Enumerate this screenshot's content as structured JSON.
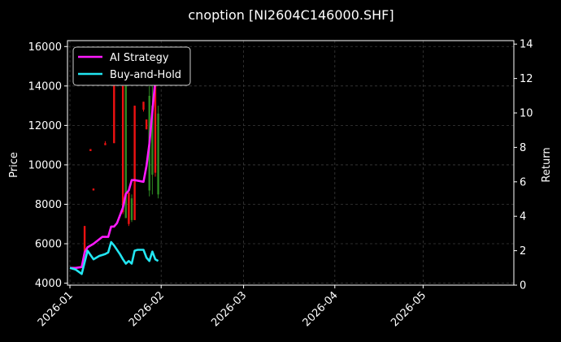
{
  "chart_data": {
    "type": "line",
    "title": "cnoption [NI2604C146000.SHF]",
    "ylabel_left": "Price",
    "ylabel_right": "Return",
    "xlabel": "",
    "x_ticks": [
      "2026-01",
      "2026-02",
      "2026-03",
      "2026-04",
      "2026-05"
    ],
    "x_range": [
      "2026-01-01",
      "2026-05-31"
    ],
    "y_left_ticks": [
      4000,
      6000,
      8000,
      10000,
      12000,
      14000,
      16000
    ],
    "y_left_range": [
      3900,
      16300
    ],
    "y_right_ticks": [
      0,
      2,
      4,
      6,
      8,
      10,
      12,
      14
    ],
    "y_right_range": [
      0,
      14.2
    ],
    "grid": true,
    "legend_position": "top-left",
    "colors": {
      "up": "#2e8b22",
      "down": "#ee1111",
      "ai": "#ff1aff",
      "bh": "#22e6f2"
    },
    "candles": [
      {
        "date": "2026-01-06",
        "open": 6900,
        "high": 6900,
        "low": 5600,
        "close": 5600
      },
      {
        "date": "2026-01-08",
        "open": 10800,
        "high": 10800,
        "low": 10700,
        "close": 10700
      },
      {
        "date": "2026-01-09",
        "open": 8800,
        "high": 8800,
        "low": 8700,
        "close": 8700
      },
      {
        "date": "2026-01-13",
        "open": 11100,
        "high": 11200,
        "low": 11000,
        "close": 11000
      },
      {
        "date": "2026-01-16",
        "open": 15600,
        "high": 15600,
        "low": 11100,
        "close": 11100
      },
      {
        "date": "2026-01-19",
        "open": 14000,
        "high": 14000,
        "low": 7500,
        "close": 7600
      },
      {
        "date": "2026-01-20",
        "open": 7300,
        "high": 15500,
        "low": 7300,
        "close": 14200
      },
      {
        "date": "2026-01-21",
        "open": 8600,
        "high": 8600,
        "low": 6900,
        "close": 7000
      },
      {
        "date": "2026-01-22",
        "open": 7200,
        "high": 8500,
        "low": 7100,
        "close": 8300
      },
      {
        "date": "2026-01-23",
        "open": 13000,
        "high": 13000,
        "low": 7200,
        "close": 7200
      },
      {
        "date": "2026-01-26",
        "open": 13200,
        "high": 13200,
        "low": 12700,
        "close": 12800
      },
      {
        "date": "2026-01-27",
        "open": 12300,
        "high": 12300,
        "low": 11800,
        "close": 11800
      },
      {
        "date": "2026-01-28",
        "open": 8700,
        "high": 14000,
        "low": 8400,
        "close": 13500
      },
      {
        "date": "2026-01-29",
        "open": 9500,
        "high": 14000,
        "low": 8500,
        "close": 13000
      },
      {
        "date": "2026-01-30",
        "open": 14500,
        "high": 15000,
        "low": 9400,
        "close": 9600
      },
      {
        "date": "2026-01-31",
        "open": 8500,
        "high": 13000,
        "low": 8300,
        "close": 12600
      }
    ],
    "series": [
      {
        "name": "AI Strategy",
        "color": "#ff1aff",
        "points": [
          [
            "2026-01-01",
            1.0
          ],
          [
            "2026-01-03",
            1.0
          ],
          [
            "2026-01-05",
            1.05
          ],
          [
            "2026-01-06",
            1.9
          ],
          [
            "2026-01-07",
            2.2
          ],
          [
            "2026-01-09",
            2.4
          ],
          [
            "2026-01-12",
            2.8
          ],
          [
            "2026-01-14",
            2.8
          ],
          [
            "2026-01-15",
            3.4
          ],
          [
            "2026-01-16",
            3.4
          ],
          [
            "2026-01-17",
            3.6
          ],
          [
            "2026-01-19",
            4.5
          ],
          [
            "2026-01-20",
            5.3
          ],
          [
            "2026-01-21",
            5.5
          ],
          [
            "2026-01-22",
            6.1
          ],
          [
            "2026-01-23",
            6.1
          ],
          [
            "2026-01-26",
            6.0
          ],
          [
            "2026-01-27",
            6.9
          ],
          [
            "2026-01-28",
            8.2
          ],
          [
            "2026-01-29",
            10.1
          ],
          [
            "2026-01-30",
            11.9
          ],
          [
            "2026-01-31",
            13.3
          ]
        ]
      },
      {
        "name": "Buy-and-Hold",
        "color": "#22e6f2",
        "points": [
          [
            "2026-01-01",
            1.0
          ],
          [
            "2026-01-03",
            0.9
          ],
          [
            "2026-01-05",
            0.65
          ],
          [
            "2026-01-07",
            2.0
          ],
          [
            "2026-01-09",
            1.5
          ],
          [
            "2026-01-11",
            1.7
          ],
          [
            "2026-01-13",
            1.8
          ],
          [
            "2026-01-14",
            1.9
          ],
          [
            "2026-01-15",
            2.5
          ],
          [
            "2026-01-16",
            2.3
          ],
          [
            "2026-01-18",
            1.8
          ],
          [
            "2026-01-19",
            1.5
          ],
          [
            "2026-01-20",
            1.25
          ],
          [
            "2026-01-21",
            1.4
          ],
          [
            "2026-01-22",
            1.25
          ],
          [
            "2026-01-23",
            2.0
          ],
          [
            "2026-01-24",
            2.05
          ],
          [
            "2026-01-26",
            2.05
          ],
          [
            "2026-01-27",
            1.6
          ],
          [
            "2026-01-28",
            1.4
          ],
          [
            "2026-01-29",
            1.95
          ],
          [
            "2026-01-30",
            1.5
          ],
          [
            "2026-01-31",
            1.4
          ]
        ]
      }
    ]
  }
}
